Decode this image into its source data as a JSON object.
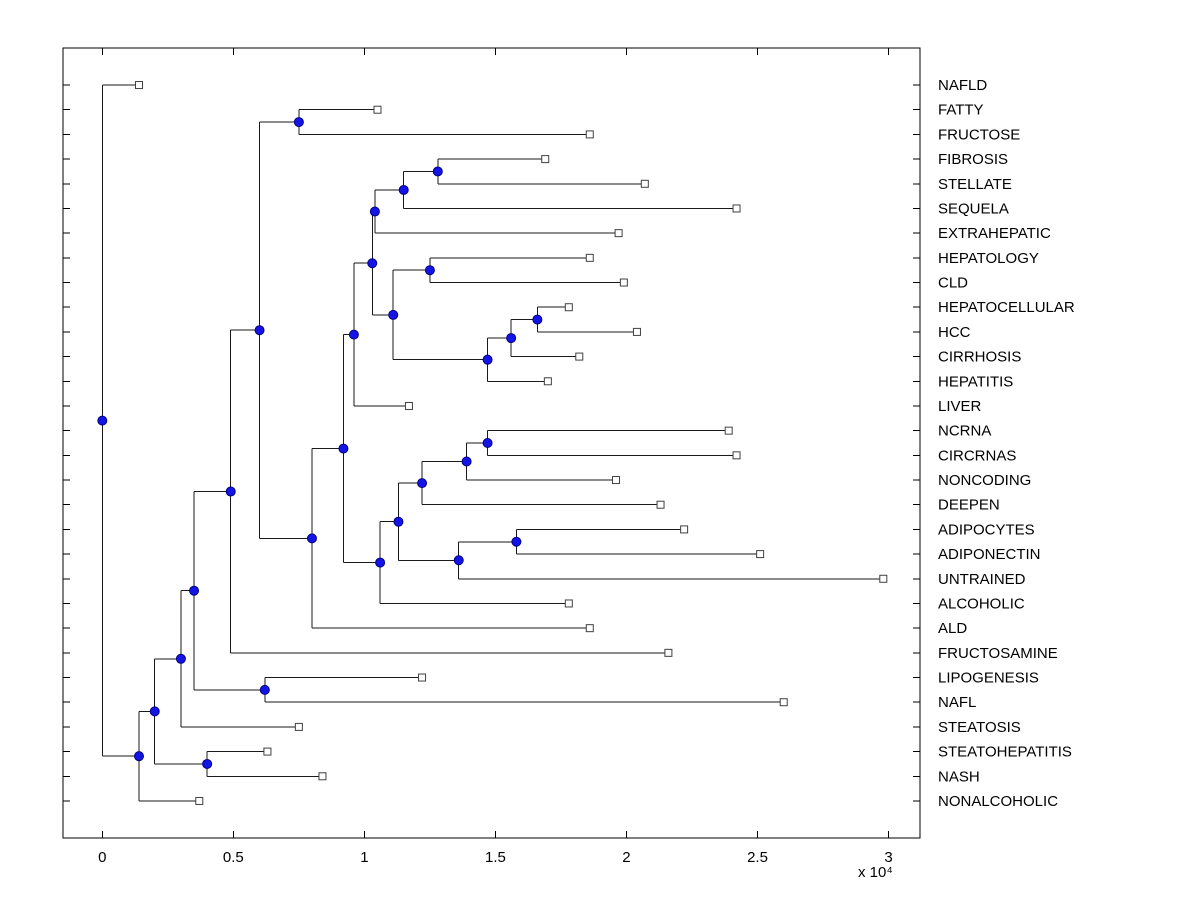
{
  "chart_data": {
    "type": "dendrogram",
    "orientation": "left-to-right",
    "title": "",
    "xlabel": "",
    "ylabel": "",
    "x_unit_multiplier": "x 10⁴",
    "x_ticks": [
      0,
      0.5,
      1,
      1.5,
      2,
      2.5,
      3
    ],
    "x_tick_labels": [
      "0",
      "0.5",
      "1",
      "1.5",
      "2",
      "2.5",
      "3"
    ],
    "xlim": [
      -0.15,
      3.12
    ],
    "row_lim": [
      -0.5,
      31.5
    ],
    "grid": false,
    "legend": "none",
    "style": {
      "line_color": "#1a1a1a",
      "axis_color": "#000000",
      "leaf_marker_fill": "#ffffff",
      "leaf_marker_stroke": "#404040",
      "node_marker_fill": "#1414e6",
      "node_marker_stroke": "#000080",
      "background": "#ffffff"
    },
    "leaves": [
      {
        "name": "NAFLD",
        "distance": 0.14
      },
      {
        "name": "FATTY",
        "distance": 1.05
      },
      {
        "name": "FRUCTOSE",
        "distance": 1.86
      },
      {
        "name": "FIBROSIS",
        "distance": 1.69
      },
      {
        "name": "STELLATE",
        "distance": 2.07
      },
      {
        "name": "SEQUELA",
        "distance": 2.42
      },
      {
        "name": "EXTRAHEPATIC",
        "distance": 1.97
      },
      {
        "name": "HEPATOLOGY",
        "distance": 1.86
      },
      {
        "name": "CLD",
        "distance": 1.99
      },
      {
        "name": "HEPATOCELLULAR",
        "distance": 1.78
      },
      {
        "name": "HCC",
        "distance": 2.04
      },
      {
        "name": "CIRRHOSIS",
        "distance": 1.82
      },
      {
        "name": "HEPATITIS",
        "distance": 1.7
      },
      {
        "name": "LIVER",
        "distance": 1.17
      },
      {
        "name": "NCRNA",
        "distance": 2.39
      },
      {
        "name": "CIRCRNAS",
        "distance": 2.42
      },
      {
        "name": "NONCODING",
        "distance": 1.96
      },
      {
        "name": "DEEPEN",
        "distance": 2.13
      },
      {
        "name": "ADIPOCYTES",
        "distance": 2.22
      },
      {
        "name": "ADIPONECTIN",
        "distance": 2.51
      },
      {
        "name": "UNTRAINED",
        "distance": 2.98
      },
      {
        "name": "ALCOHOLIC",
        "distance": 1.78
      },
      {
        "name": "ALD",
        "distance": 1.86
      },
      {
        "name": "FRUCTOSAMINE",
        "distance": 2.16
      },
      {
        "name": "LIPOGENESIS",
        "distance": 1.22
      },
      {
        "name": "NAFL",
        "distance": 2.6
      },
      {
        "name": "STEATOSIS",
        "distance": 0.75
      },
      {
        "name": "STEATOHEPATITIS",
        "distance": 0.63
      },
      {
        "name": "NASH",
        "distance": 0.84
      },
      {
        "name": "NONALCOHOLIC",
        "distance": 0.37
      }
    ],
    "internal_nodes": [
      {
        "id": "nA",
        "distance": 0.75,
        "children": [
          "FATTY",
          "FRUCTOSE"
        ]
      },
      {
        "id": "nB",
        "distance": 1.28,
        "children": [
          "FIBROSIS",
          "STELLATE"
        ]
      },
      {
        "id": "nC",
        "distance": 1.15,
        "children": [
          "nB",
          "SEQUELA"
        ]
      },
      {
        "id": "nD",
        "distance": 1.04,
        "children": [
          "nC",
          "EXTRAHEPATIC"
        ]
      },
      {
        "id": "nE",
        "distance": 1.25,
        "children": [
          "HEPATOLOGY",
          "CLD"
        ]
      },
      {
        "id": "nK",
        "distance": 1.66,
        "children": [
          "HEPATOCELLULAR",
          "HCC"
        ]
      },
      {
        "id": "nL",
        "distance": 1.56,
        "children": [
          "nK",
          "CIRRHOSIS"
        ]
      },
      {
        "id": "nM",
        "distance": 1.47,
        "children": [
          "nL",
          "HEPATITIS"
        ]
      },
      {
        "id": "nN",
        "distance": 1.11,
        "children": [
          "nE",
          "nM"
        ]
      },
      {
        "id": "nO",
        "distance": 1.03,
        "children": [
          "nD",
          "nN"
        ]
      },
      {
        "id": "nP",
        "distance": 0.96,
        "children": [
          "nO",
          "LIVER"
        ]
      },
      {
        "id": "nU",
        "distance": 1.47,
        "children": [
          "NCRNA",
          "CIRCRNAS"
        ]
      },
      {
        "id": "nV",
        "distance": 1.39,
        "children": [
          "nU",
          "NONCODING"
        ]
      },
      {
        "id": "nW",
        "distance": 1.22,
        "children": [
          "nV",
          "DEEPEN"
        ]
      },
      {
        "id": "nX",
        "distance": 1.58,
        "children": [
          "ADIPOCYTES",
          "ADIPONECTIN"
        ]
      },
      {
        "id": "nY",
        "distance": 1.36,
        "children": [
          "nX",
          "UNTRAINED"
        ]
      },
      {
        "id": "nZ",
        "distance": 1.13,
        "children": [
          "nW",
          "nY"
        ]
      },
      {
        "id": "nZ2",
        "distance": 1.06,
        "children": [
          "nZ",
          "ALCOHOLIC"
        ]
      },
      {
        "id": "nAA",
        "distance": 0.92,
        "children": [
          "nP",
          "nZ2"
        ]
      },
      {
        "id": "nAB",
        "distance": 0.8,
        "children": [
          "nAA",
          "ALD"
        ]
      },
      {
        "id": "nQ",
        "distance": 0.6,
        "children": [
          "nA",
          "nAB"
        ]
      },
      {
        "id": "nR",
        "distance": 0.49,
        "children": [
          "nQ",
          "FRUCTOSAMINE"
        ]
      },
      {
        "id": "nT",
        "distance": 0.62,
        "children": [
          "LIPOGENESIS",
          "NAFL"
        ]
      },
      {
        "id": "nS",
        "distance": 0.35,
        "children": [
          "nR",
          "nT"
        ]
      },
      {
        "id": "nY2",
        "distance": 0.3,
        "children": [
          "nS",
          "STEATOSIS"
        ]
      },
      {
        "id": "nW2",
        "distance": 0.4,
        "children": [
          "STEATOHEPATITIS",
          "NASH"
        ]
      },
      {
        "id": "nM3a",
        "distance": 0.2,
        "children": [
          "nY2",
          "nW2"
        ]
      },
      {
        "id": "nM3",
        "distance": 0.14,
        "children": [
          "nM3a",
          "NONALCOHOLIC"
        ]
      },
      {
        "id": "root",
        "distance": 0.0,
        "children": [
          "NAFLD",
          "nM3"
        ]
      }
    ]
  }
}
